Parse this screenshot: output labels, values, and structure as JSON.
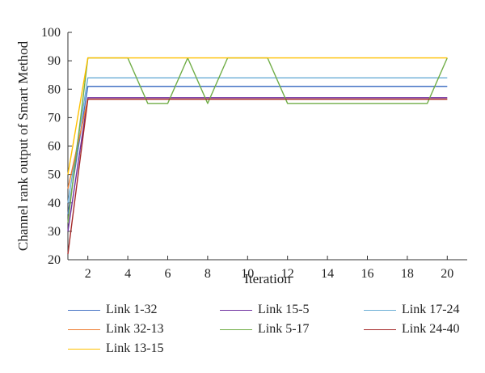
{
  "chart_data": {
    "type": "line",
    "xlabel": "Iteration",
    "ylabel": "Channel rank output of Smart Method",
    "xlim": [
      1,
      21
    ],
    "ylim": [
      20,
      100
    ],
    "xticks": [
      2,
      4,
      6,
      8,
      10,
      12,
      14,
      16,
      18,
      20
    ],
    "xtick_labels": [
      "2",
      "4",
      "6",
      "8",
      "10",
      "12",
      "14",
      "16",
      "18",
      "20"
    ],
    "yticks": [
      20,
      30,
      40,
      50,
      60,
      70,
      80,
      90,
      100
    ],
    "ytick_labels": [
      "20",
      "30",
      "40",
      "50",
      "60",
      "70",
      "80",
      "90",
      "100"
    ],
    "grid": false,
    "legend_position": "bottom",
    "x": [
      1,
      2,
      3,
      4,
      5,
      6,
      7,
      8,
      9,
      10,
      11,
      12,
      13,
      14,
      15,
      16,
      17,
      18,
      19,
      20
    ],
    "series": [
      {
        "name": "Link 1-32",
        "color": "#4472c4",
        "values": [
          36,
          81,
          81,
          81,
          81,
          81,
          81,
          81,
          81,
          81,
          81,
          81,
          81,
          81,
          81,
          81,
          81,
          81,
          81,
          81
        ]
      },
      {
        "name": "Link 15-5",
        "color": "#7030a0",
        "values": [
          30,
          77,
          77,
          77,
          77,
          77,
          77,
          77,
          77,
          77,
          77,
          77,
          77,
          77,
          77,
          77,
          77,
          77,
          77,
          77
        ]
      },
      {
        "name": "Link 17-24",
        "color": "#6baed6",
        "values": [
          40,
          84,
          84,
          84,
          84,
          84,
          84,
          84,
          84,
          84,
          84,
          84,
          84,
          84,
          84,
          84,
          84,
          84,
          84,
          84
        ]
      },
      {
        "name": "Link 32-13",
        "color": "#ed7d31",
        "values": [
          45,
          76.5,
          76.5,
          76.5,
          76.5,
          76.5,
          76.5,
          76.5,
          76.5,
          76.5,
          76.5,
          76.5,
          76.5,
          76.5,
          76.5,
          76.5,
          76.5,
          76.5,
          76.5,
          76.5
        ]
      },
      {
        "name": "Link 5-17",
        "color": "#70ad47",
        "values": [
          33,
          91,
          91,
          91,
          75,
          75,
          91,
          75,
          91,
          91,
          91,
          75,
          75,
          75,
          75,
          75,
          75,
          75,
          75,
          91
        ]
      },
      {
        "name": "Link 24-40",
        "color": "#a52a2a",
        "values": [
          22,
          76.5,
          76.5,
          76.5,
          76.5,
          76.5,
          76.5,
          76.5,
          76.5,
          76.5,
          76.5,
          76.5,
          76.5,
          76.5,
          76.5,
          76.5,
          76.5,
          76.5,
          76.5,
          76.5
        ]
      },
      {
        "name": "Link 13-15",
        "color": "#ffc000",
        "values": [
          50,
          91,
          91,
          91,
          91,
          91,
          91,
          91,
          91,
          91,
          91,
          91,
          91,
          91,
          91,
          91,
          91,
          91,
          91,
          91
        ]
      }
    ]
  }
}
